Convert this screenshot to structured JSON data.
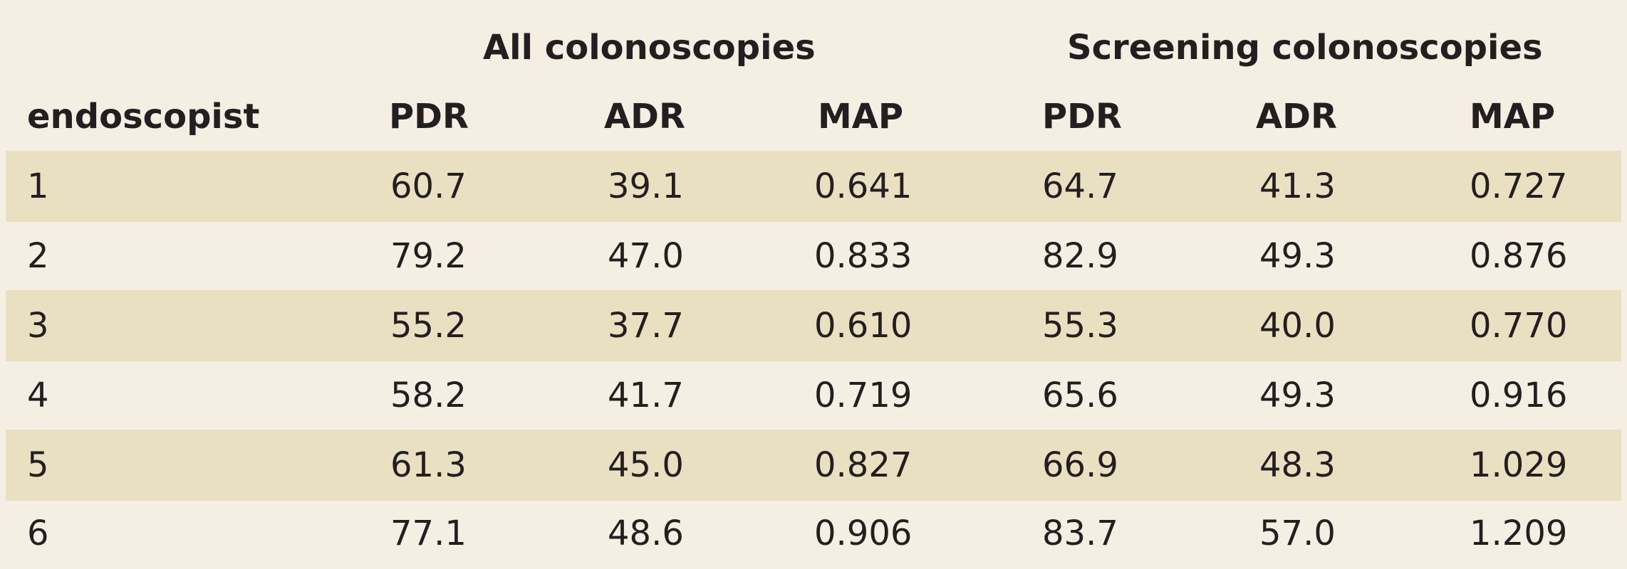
{
  "table": {
    "group_headers": [
      "All colonoscopies",
      "Screening colonoscopies"
    ],
    "columns": [
      "endoscopist",
      "PDR",
      "ADR",
      "MAP",
      "PDR",
      "ADR",
      "MAP"
    ],
    "rows": [
      [
        "1",
        "60.7",
        "39.1",
        "0.641",
        "64.7",
        "41.3",
        "0.727"
      ],
      [
        "2",
        "79.2",
        "47.0",
        "0.833",
        "82.9",
        "49.3",
        "0.876"
      ],
      [
        "3",
        "55.2",
        "37.7",
        "0.610",
        "55.3",
        "40.0",
        "0.770"
      ],
      [
        "4",
        "58.2",
        "41.7",
        "0.719",
        "65.6",
        "49.3",
        "0.916"
      ],
      [
        "5",
        "61.3",
        "45.0",
        "0.827",
        "66.9",
        "48.3",
        "1.029"
      ],
      [
        "6",
        "77.1",
        "48.6",
        "0.906",
        "83.7",
        "57.0",
        "1.209"
      ]
    ],
    "colors": {
      "background": "#f4efe2",
      "shaded_row": "#e9dfc1",
      "text": "#231f20"
    }
  }
}
